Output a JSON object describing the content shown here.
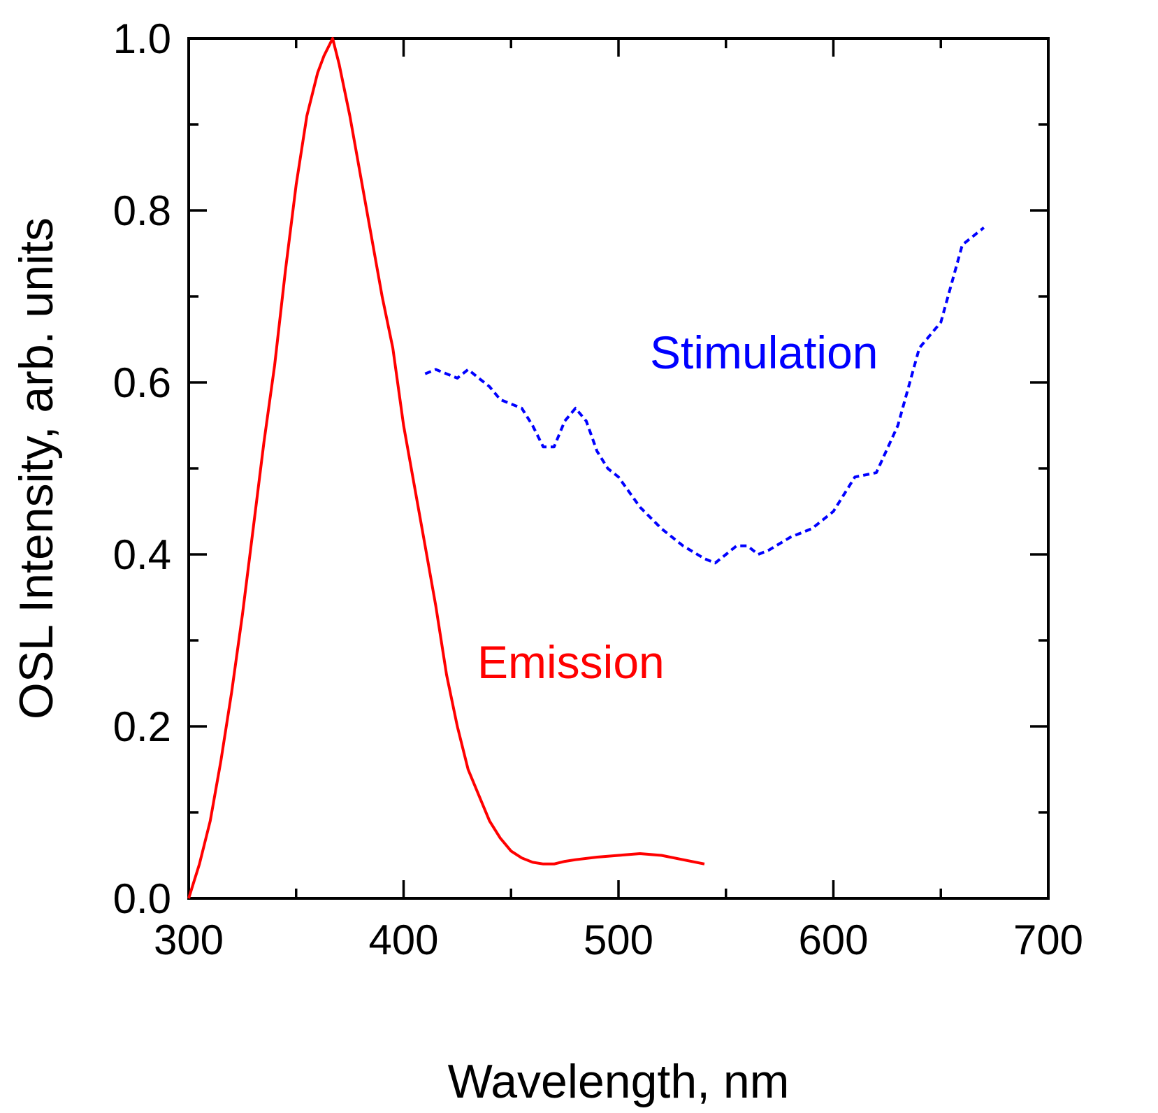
{
  "chart_data": {
    "type": "line",
    "xlabel": "Wavelength, nm",
    "ylabel": "OSL Intensity, arb. units",
    "xlim": [
      300,
      700
    ],
    "ylim": [
      0,
      1.0
    ],
    "xticks": [
      300,
      400,
      500,
      600,
      700
    ],
    "xtick_labels": [
      "300",
      "400",
      "500",
      "600",
      "700"
    ],
    "yticks": [
      0,
      0.2,
      0.4,
      0.6,
      0.8,
      1.0
    ],
    "ytick_labels": [
      "0.0",
      "0.2",
      "0.4",
      "0.6",
      "0.8",
      "1.0"
    ],
    "grid": false,
    "series": [
      {
        "name": "Emission",
        "label": "Emission",
        "color": "#ff0000",
        "style": "solid",
        "x": [
          300,
          305,
          310,
          315,
          320,
          325,
          330,
          335,
          340,
          345,
          350,
          355,
          360,
          363,
          367,
          370,
          375,
          380,
          385,
          390,
          395,
          400,
          405,
          410,
          415,
          420,
          425,
          430,
          435,
          440,
          445,
          450,
          455,
          460,
          465,
          470,
          475,
          480,
          490,
          500,
          510,
          520,
          530,
          540
        ],
        "y": [
          0.0,
          0.04,
          0.09,
          0.16,
          0.24,
          0.33,
          0.43,
          0.53,
          0.62,
          0.73,
          0.83,
          0.91,
          0.96,
          0.98,
          1.0,
          0.97,
          0.91,
          0.84,
          0.77,
          0.7,
          0.64,
          0.55,
          0.48,
          0.41,
          0.34,
          0.26,
          0.2,
          0.15,
          0.12,
          0.09,
          0.07,
          0.055,
          0.047,
          0.042,
          0.04,
          0.04,
          0.043,
          0.045,
          0.048,
          0.05,
          0.052,
          0.05,
          0.045,
          0.04
        ]
      },
      {
        "name": "Stimulation",
        "label": "Stimulation",
        "color": "#0000ff",
        "style": "dashed",
        "x": [
          410,
          415,
          420,
          425,
          430,
          435,
          440,
          445,
          450,
          455,
          460,
          465,
          470,
          475,
          480,
          485,
          490,
          495,
          500,
          510,
          520,
          530,
          540,
          545,
          550,
          555,
          560,
          565,
          570,
          580,
          590,
          600,
          610,
          620,
          630,
          640,
          650,
          660,
          665,
          670
        ],
        "y": [
          0.61,
          0.615,
          0.61,
          0.605,
          0.615,
          0.605,
          0.595,
          0.58,
          0.575,
          0.57,
          0.55,
          0.525,
          0.525,
          0.555,
          0.57,
          0.555,
          0.52,
          0.5,
          0.49,
          0.455,
          0.43,
          0.41,
          0.395,
          0.39,
          0.4,
          0.41,
          0.41,
          0.4,
          0.405,
          0.42,
          0.43,
          0.45,
          0.49,
          0.495,
          0.55,
          0.64,
          0.67,
          0.76,
          0.77,
          0.78
        ]
      }
    ]
  }
}
